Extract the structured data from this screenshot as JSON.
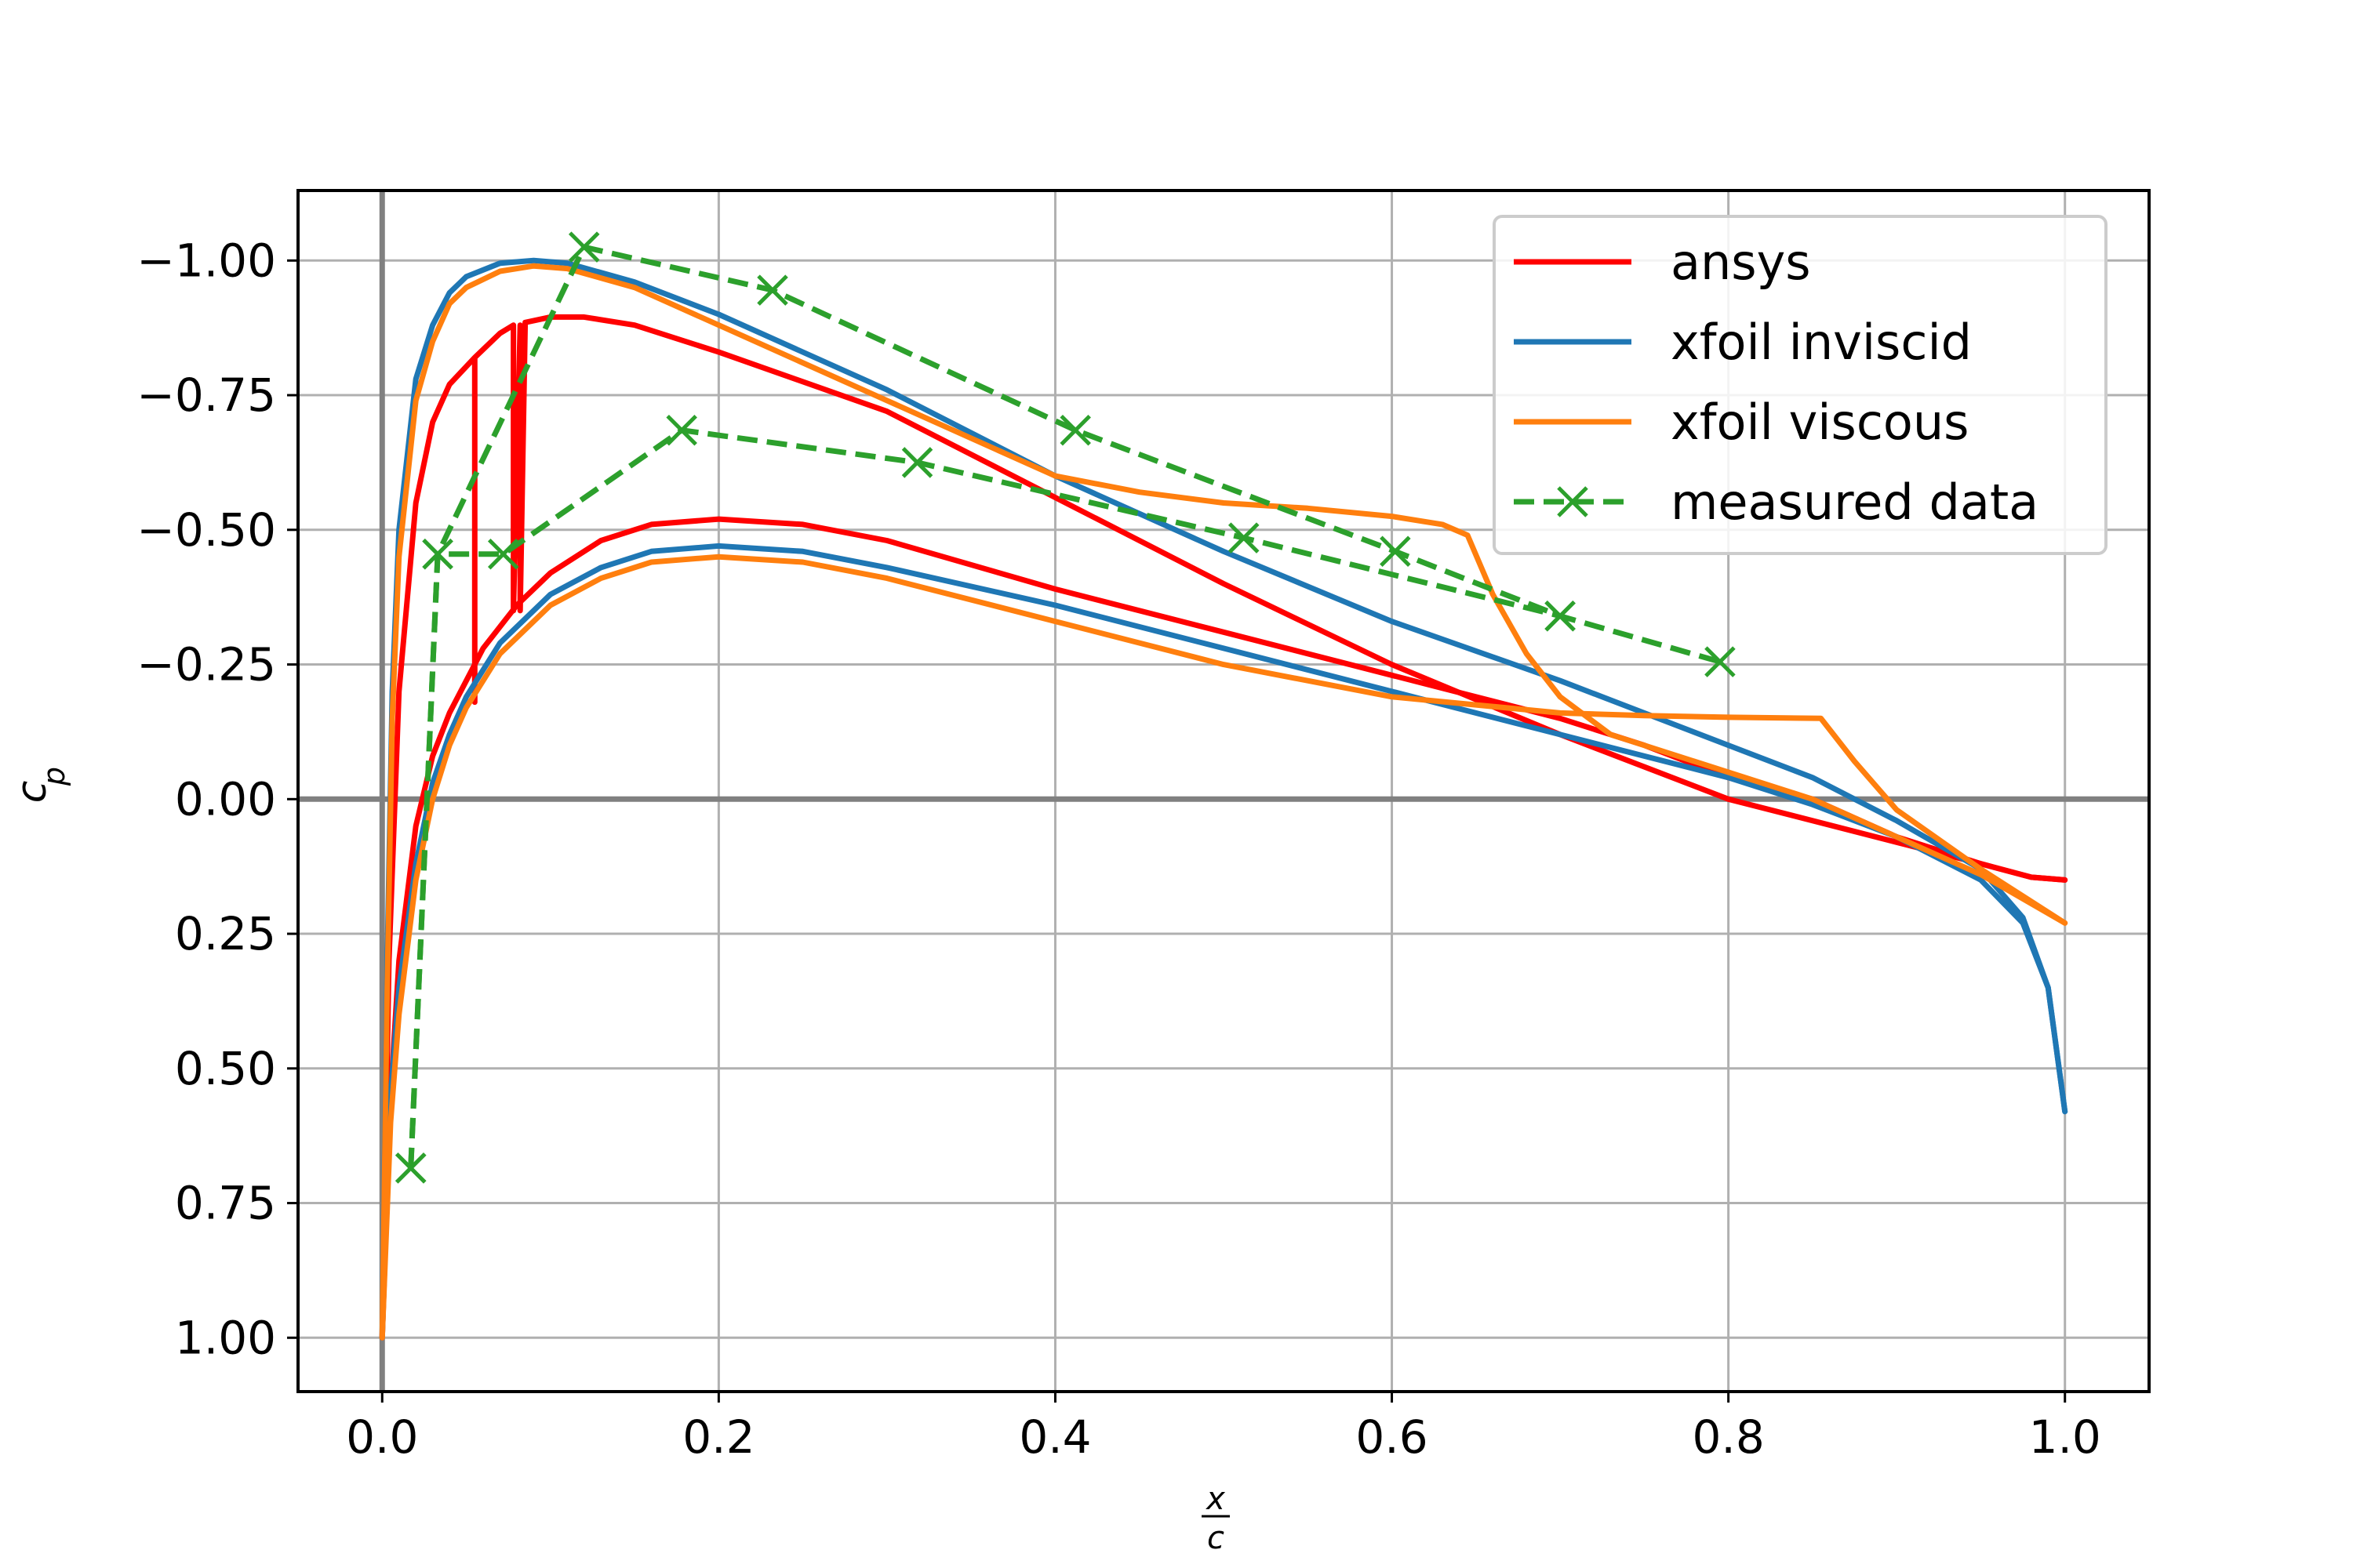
{
  "chart_data": {
    "type": "line",
    "xlabel_num": "x",
    "xlabel_den": "c",
    "ylabel_main": "c",
    "ylabel_sub": "p",
    "xlim": [
      -0.05,
      1.05
    ],
    "ylim": [
      1.1,
      -1.13
    ],
    "y_inverted": true,
    "grid": true,
    "legend_position": "top-right",
    "xticks": [
      0.0,
      0.2,
      0.4,
      0.6,
      0.8,
      1.0
    ],
    "xtick_labels": [
      "0.0",
      "0.2",
      "0.4",
      "0.6",
      "0.8",
      "1.0"
    ],
    "yticks": [
      -1.0,
      -0.75,
      -0.5,
      -0.25,
      0.0,
      0.25,
      0.5,
      0.75,
      1.0
    ],
    "ytick_labels": [
      "−1.00",
      "−0.75",
      "−0.50",
      "−0.25",
      "0.00",
      "0.25",
      "0.50",
      "0.75",
      "1.00"
    ],
    "reference_lines": {
      "x": 0,
      "y": 0,
      "color": "#808080"
    },
    "series": [
      {
        "name": "ansys",
        "color": "#ff0000",
        "dashed": false,
        "marker": "none",
        "segments": [
          [
            [
              0.0,
              1.0
            ],
            [
              0.004,
              0.3
            ],
            [
              0.01,
              -0.2
            ],
            [
              0.02,
              -0.55
            ],
            [
              0.03,
              -0.7
            ],
            [
              0.04,
              -0.77
            ],
            [
              0.055,
              -0.82
            ],
            [
              0.055,
              -0.18
            ],
            [
              0.055,
              -0.82
            ],
            [
              0.07,
              -0.865
            ],
            [
              0.078,
              -0.88
            ],
            [
              0.078,
              -0.35
            ],
            [
              0.082,
              -0.88
            ],
            [
              0.082,
              -0.35
            ],
            [
              0.085,
              -0.885
            ],
            [
              0.1,
              -0.895
            ],
            [
              0.12,
              -0.895
            ],
            [
              0.15,
              -0.88
            ],
            [
              0.2,
              -0.83
            ],
            [
              0.3,
              -0.72
            ],
            [
              0.4,
              -0.56
            ],
            [
              0.5,
              -0.4
            ],
            [
              0.6,
              -0.25
            ],
            [
              0.7,
              -0.12
            ],
            [
              0.8,
              0.0
            ],
            [
              0.9,
              0.08
            ],
            [
              0.95,
              0.12
            ],
            [
              0.98,
              0.145
            ],
            [
              1.0,
              0.15
            ]
          ],
          [
            [
              0.0,
              1.0
            ],
            [
              0.005,
              0.55
            ],
            [
              0.01,
              0.3
            ],
            [
              0.02,
              0.05
            ],
            [
              0.03,
              -0.08
            ],
            [
              0.04,
              -0.16
            ],
            [
              0.05,
              -0.22
            ],
            [
              0.06,
              -0.28
            ],
            [
              0.08,
              -0.36
            ],
            [
              0.1,
              -0.42
            ],
            [
              0.13,
              -0.48
            ],
            [
              0.16,
              -0.51
            ],
            [
              0.2,
              -0.52
            ],
            [
              0.25,
              -0.51
            ],
            [
              0.3,
              -0.48
            ],
            [
              0.4,
              -0.39
            ],
            [
              0.5,
              -0.31
            ],
            [
              0.6,
              -0.23
            ],
            [
              0.7,
              -0.15
            ],
            [
              0.75,
              -0.1
            ],
            [
              0.8,
              -0.04
            ],
            [
              0.85,
              0.0
            ],
            [
              0.9,
              0.07
            ],
            [
              0.95,
              0.12
            ],
            [
              0.98,
              0.145
            ],
            [
              1.0,
              0.15
            ]
          ]
        ]
      },
      {
        "name": "xfoil inviscid",
        "color": "#1f77b4",
        "dashed": false,
        "marker": "none",
        "segments": [
          [
            [
              0.0,
              1.0
            ],
            [
              0.003,
              0.3
            ],
            [
              0.006,
              -0.2
            ],
            [
              0.01,
              -0.5
            ],
            [
              0.02,
              -0.78
            ],
            [
              0.03,
              -0.88
            ],
            [
              0.04,
              -0.94
            ],
            [
              0.05,
              -0.97
            ],
            [
              0.07,
              -0.995
            ],
            [
              0.09,
              -1.0
            ],
            [
              0.11,
              -0.995
            ],
            [
              0.15,
              -0.96
            ],
            [
              0.2,
              -0.9
            ],
            [
              0.3,
              -0.76
            ],
            [
              0.4,
              -0.6
            ],
            [
              0.5,
              -0.46
            ],
            [
              0.6,
              -0.33
            ],
            [
              0.7,
              -0.22
            ],
            [
              0.8,
              -0.1
            ],
            [
              0.85,
              -0.04
            ],
            [
              0.9,
              0.04
            ],
            [
              0.95,
              0.13
            ],
            [
              0.975,
              0.22
            ],
            [
              0.99,
              0.35
            ],
            [
              1.0,
              0.58
            ]
          ],
          [
            [
              0.0,
              1.0
            ],
            [
              0.005,
              0.55
            ],
            [
              0.01,
              0.35
            ],
            [
              0.02,
              0.12
            ],
            [
              0.03,
              -0.03
            ],
            [
              0.04,
              -0.12
            ],
            [
              0.05,
              -0.19
            ],
            [
              0.07,
              -0.29
            ],
            [
              0.1,
              -0.38
            ],
            [
              0.13,
              -0.43
            ],
            [
              0.16,
              -0.46
            ],
            [
              0.2,
              -0.47
            ],
            [
              0.25,
              -0.46
            ],
            [
              0.3,
              -0.43
            ],
            [
              0.4,
              -0.36
            ],
            [
              0.5,
              -0.28
            ],
            [
              0.6,
              -0.2
            ],
            [
              0.7,
              -0.12
            ],
            [
              0.8,
              -0.04
            ],
            [
              0.85,
              0.01
            ],
            [
              0.9,
              0.07
            ],
            [
              0.95,
              0.15
            ],
            [
              0.975,
              0.23
            ],
            [
              0.99,
              0.35
            ],
            [
              1.0,
              0.58
            ]
          ]
        ]
      },
      {
        "name": "xfoil viscous",
        "color": "#ff7f0e",
        "dashed": false,
        "marker": "none",
        "segments": [
          [
            [
              0.0,
              1.0
            ],
            [
              0.003,
              0.35
            ],
            [
              0.006,
              -0.15
            ],
            [
              0.01,
              -0.45
            ],
            [
              0.02,
              -0.74
            ],
            [
              0.03,
              -0.85
            ],
            [
              0.04,
              -0.92
            ],
            [
              0.05,
              -0.95
            ],
            [
              0.07,
              -0.98
            ],
            [
              0.09,
              -0.99
            ],
            [
              0.11,
              -0.985
            ],
            [
              0.15,
              -0.95
            ],
            [
              0.2,
              -0.88
            ],
            [
              0.3,
              -0.74
            ],
            [
              0.4,
              -0.6
            ],
            [
              0.45,
              -0.57
            ],
            [
              0.5,
              -0.55
            ],
            [
              0.55,
              -0.54
            ],
            [
              0.6,
              -0.525
            ],
            [
              0.63,
              -0.51
            ],
            [
              0.645,
              -0.49
            ],
            [
              0.66,
              -0.38
            ],
            [
              0.68,
              -0.27
            ],
            [
              0.7,
              -0.19
            ],
            [
              0.73,
              -0.12
            ],
            [
              0.8,
              -0.05
            ],
            [
              0.85,
              0.0
            ],
            [
              0.9,
              0.07
            ],
            [
              0.95,
              0.14
            ],
            [
              1.0,
              0.23
            ]
          ],
          [
            [
              0.0,
              1.0
            ],
            [
              0.005,
              0.6
            ],
            [
              0.01,
              0.4
            ],
            [
              0.02,
              0.15
            ],
            [
              0.03,
              0.0
            ],
            [
              0.04,
              -0.1
            ],
            [
              0.05,
              -0.17
            ],
            [
              0.07,
              -0.27
            ],
            [
              0.1,
              -0.36
            ],
            [
              0.13,
              -0.41
            ],
            [
              0.16,
              -0.44
            ],
            [
              0.2,
              -0.45
            ],
            [
              0.25,
              -0.44
            ],
            [
              0.3,
              -0.41
            ],
            [
              0.4,
              -0.33
            ],
            [
              0.5,
              -0.25
            ],
            [
              0.6,
              -0.19
            ],
            [
              0.7,
              -0.16
            ],
            [
              0.75,
              -0.155
            ],
            [
              0.8,
              -0.152
            ],
            [
              0.855,
              -0.15
            ],
            [
              0.875,
              -0.07
            ],
            [
              0.9,
              0.02
            ],
            [
              0.95,
              0.13
            ],
            [
              1.0,
              0.23
            ]
          ]
        ]
      },
      {
        "name": "measured data",
        "color": "#2ca02c",
        "dashed": true,
        "marker": "x",
        "segments": [
          [
            [
              0.017,
              0.685
            ],
            [
              0.033,
              -0.455
            ],
            [
              0.072,
              -0.455
            ],
            [
              0.178,
              -0.685
            ],
            [
              0.318,
              -0.625
            ],
            [
              0.512,
              -0.485
            ],
            [
              0.7,
              -0.34
            ]
          ],
          [
            [
              0.017,
              0.685
            ],
            [
              0.033,
              -0.455
            ],
            [
              0.12,
              -1.025
            ],
            [
              0.232,
              -0.945
            ],
            [
              0.412,
              -0.685
            ],
            [
              0.602,
              -0.46
            ],
            [
              0.7,
              -0.34
            ],
            [
              0.795,
              -0.255
            ]
          ]
        ]
      }
    ]
  }
}
